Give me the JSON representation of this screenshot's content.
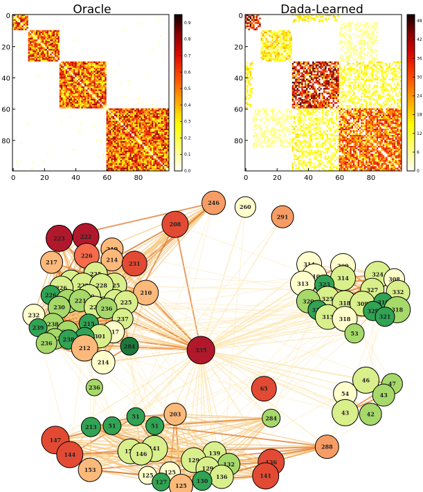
{
  "chart_data": [
    {
      "type": "heatmap",
      "title": "Oracle",
      "xticks": [
        0,
        20,
        40,
        60,
        80
      ],
      "yticks": [
        0,
        20,
        40,
        60,
        80
      ],
      "xlim": [
        0,
        100
      ],
      "ylim": [
        0,
        100
      ],
      "colormap": "hot_r",
      "colorbar": {
        "range": [
          0.0,
          0.95
        ],
        "ticks": [
          "0.0",
          "0.1",
          "0.2",
          "0.3",
          "0.4",
          "0.5",
          "0.6",
          "0.7",
          "0.8",
          "0.9"
        ]
      },
      "blocks": [
        {
          "start": 0,
          "end": 10,
          "level": 0.6
        },
        {
          "start": 10,
          "end": 30,
          "level": 0.6
        },
        {
          "start": 30,
          "end": 60,
          "level": 0.6
        },
        {
          "start": 60,
          "end": 100,
          "level": 0.6
        }
      ],
      "diagonal_value": 0.0
    },
    {
      "type": "heatmap",
      "title": "Dada-Learned",
      "xticks": [
        0,
        20,
        40,
        60,
        80
      ],
      "yticks": [
        0,
        20,
        40,
        60,
        80
      ],
      "xlim": [
        0,
        100
      ],
      "ylim": [
        0,
        100
      ],
      "colormap": "hot_r",
      "colorbar": {
        "range": [
          0,
          50
        ],
        "ticks": [
          "0",
          "6",
          "12",
          "18",
          "24",
          "30",
          "36",
          "42",
          "48"
        ]
      },
      "blocks": [
        {
          "start": 0,
          "end": 10,
          "level": 40
        },
        {
          "start": 10,
          "end": 30,
          "level": 18
        },
        {
          "start": 30,
          "end": 60,
          "level": 38
        },
        {
          "start": 60,
          "end": 100,
          "level": 30
        }
      ],
      "cross_blocks": [
        {
          "rows": [
            0,
            5
          ],
          "cols": [
            30,
            60
          ],
          "level": 14
        },
        {
          "rows": [
            5,
            30
          ],
          "cols": [
            60,
            85
          ],
          "level": 6
        },
        {
          "rows": [
            30,
            60
          ],
          "cols": [
            60,
            100
          ],
          "level": 12
        },
        {
          "rows": [
            60,
            100
          ],
          "cols": [
            30,
            34
          ],
          "level": 14
        }
      ],
      "diagonal_value": 0
    },
    {
      "type": "network",
      "node_colormap": "RdYlGn",
      "nodes": [
        {
          "label": "246",
          "pos": [
            0.505,
            0.048
          ],
          "size": 1.0,
          "color": "#f79c64"
        },
        {
          "label": "260",
          "pos": [
            0.58,
            0.062
          ],
          "size": 0.8,
          "color": "#ffffcc"
        },
        {
          "label": "291",
          "pos": [
            0.668,
            0.094
          ],
          "size": 0.9,
          "color": "#f79c64"
        },
        {
          "label": "208",
          "pos": [
            0.414,
            0.119
          ],
          "size": 1.2,
          "color": "#e34a33"
        },
        {
          "label": "223",
          "pos": [
            0.14,
            0.165
          ],
          "size": 1.2,
          "color": "#b2182b"
        },
        {
          "label": "222",
          "pos": [
            0.203,
            0.159
          ],
          "size": 1.2,
          "color": "#b2182b"
        },
        {
          "label": "226",
          "pos": [
            0.205,
            0.222
          ],
          "size": 1.1,
          "color": "#f56b4c"
        },
        {
          "label": "219",
          "pos": [
            0.265,
            0.2
          ],
          "size": 0.9,
          "color": "#fdb97a"
        },
        {
          "label": "217",
          "pos": [
            0.122,
            0.244
          ],
          "size": 0.9,
          "color": "#fdb97a"
        },
        {
          "label": "214",
          "pos": [
            0.265,
            0.236
          ],
          "size": 0.9,
          "color": "#fdb97a"
        },
        {
          "label": "231",
          "pos": [
            0.318,
            0.248
          ],
          "size": 1.1,
          "color": "#e34a33"
        },
        {
          "label": "225",
          "pos": [
            0.226,
            0.282
          ],
          "size": 1.0,
          "color": "#d9ef8b"
        },
        {
          "label": "230",
          "pos": [
            0.168,
            0.308
          ],
          "size": 1.0,
          "color": "#d9ef8b"
        },
        {
          "label": "229",
          "pos": [
            0.196,
            0.32
          ],
          "size": 1.1,
          "color": "#d9ef8b"
        },
        {
          "label": "225",
          "pos": [
            0.27,
            0.32
          ],
          "size": 1.1,
          "color": "#d9ef8b"
        },
        {
          "label": "226",
          "pos": [
            0.145,
            0.328
          ],
          "size": 1.0,
          "color": "#d9ef8b"
        },
        {
          "label": "228",
          "pos": [
            0.24,
            0.32
          ],
          "size": 1.0,
          "color": "#d9ef8b"
        },
        {
          "label": "210",
          "pos": [
            0.345,
            0.344
          ],
          "size": 1.1,
          "color": "#fdb97a"
        },
        {
          "label": "226",
          "pos": [
            0.12,
            0.352
          ],
          "size": 0.7,
          "color": "#31a354"
        },
        {
          "label": "219",
          "pos": [
            0.21,
            0.356
          ],
          "size": 1.0,
          "color": "#d9ef8b"
        },
        {
          "label": "227",
          "pos": [
            0.16,
            0.372
          ],
          "size": 1.0,
          "color": "#a6d96a"
        },
        {
          "label": "221",
          "pos": [
            0.19,
            0.37
          ],
          "size": 0.9,
          "color": "#a6d96a"
        },
        {
          "label": "223",
          "pos": [
            0.272,
            0.37
          ],
          "size": 0.9,
          "color": "#d9ef8b"
        },
        {
          "label": "225",
          "pos": [
            0.298,
            0.376
          ],
          "size": 1.0,
          "color": "#d9ef8b"
        },
        {
          "label": "230",
          "pos": [
            0.14,
            0.392
          ],
          "size": 0.9,
          "color": "#a6d96a"
        },
        {
          "label": "228",
          "pos": [
            0.225,
            0.392
          ],
          "size": 0.9,
          "color": "#d9ef8b"
        },
        {
          "label": "236",
          "pos": [
            0.252,
            0.396
          ],
          "size": 0.8,
          "color": "#a6d96a"
        },
        {
          "label": "232",
          "pos": [
            0.08,
            0.418
          ],
          "size": 0.9,
          "color": "#ffffcc"
        },
        {
          "label": "237",
          "pos": [
            0.29,
            0.43
          ],
          "size": 0.8,
          "color": "#d9ef8b"
        },
        {
          "label": "238",
          "pos": [
            0.125,
            0.448
          ],
          "size": 0.9,
          "color": "#a6d96a"
        },
        {
          "label": "215",
          "pos": [
            0.21,
            0.446
          ],
          "size": 0.7,
          "color": "#31a354"
        },
        {
          "label": "242",
          "pos": [
            0.16,
            0.473
          ],
          "size": 0.9,
          "color": "#a6d96a"
        },
        {
          "label": "217",
          "pos": [
            0.268,
            0.473
          ],
          "size": 0.9,
          "color": "#ffffcc"
        },
        {
          "label": "239",
          "pos": [
            0.09,
            0.459
          ],
          "size": 0.6,
          "color": "#31a354"
        },
        {
          "label": "301",
          "pos": [
            0.236,
            0.487
          ],
          "size": 1.0,
          "color": "#d9ef8b"
        },
        {
          "label": "275",
          "pos": [
            0.2,
            0.49
          ],
          "size": 0.7,
          "color": "#31a354"
        },
        {
          "label": "242",
          "pos": [
            0.13,
            0.496
          ],
          "size": 0.8,
          "color": "#a6d96a"
        },
        {
          "label": "238",
          "pos": [
            0.162,
            0.498
          ],
          "size": 0.7,
          "color": "#31a354"
        },
        {
          "label": "236",
          "pos": [
            0.11,
            0.51
          ],
          "size": 0.8,
          "color": "#a6d96a"
        },
        {
          "label": "212",
          "pos": [
            0.2,
            0.526
          ],
          "size": 1.2,
          "color": "#fdb97a"
        },
        {
          "label": "284",
          "pos": [
            0.306,
            0.52
          ],
          "size": 0.6,
          "color": "#1a7a3a"
        },
        {
          "label": "335",
          "pos": [
            0.475,
            0.533
          ],
          "size": 1.3,
          "color": "#b2182b"
        },
        {
          "label": "214",
          "pos": [
            0.244,
            0.573
          ],
          "size": 1.0,
          "color": "#ffffcc"
        },
        {
          "label": "314",
          "pos": [
            0.731,
            0.25
          ],
          "size": 1.1,
          "color": "#ffffcc"
        },
        {
          "label": "309",
          "pos": [
            0.811,
            0.256
          ],
          "size": 1.1,
          "color": "#ffffcc"
        },
        {
          "label": "310",
          "pos": [
            0.743,
            0.29
          ],
          "size": 1.1,
          "color": "#ffffcc"
        },
        {
          "label": "314",
          "pos": [
            0.811,
            0.296
          ],
          "size": 1.1,
          "color": "#d9ef8b"
        },
        {
          "label": "324",
          "pos": [
            0.893,
            0.284
          ],
          "size": 1.2,
          "color": "#d9ef8b"
        },
        {
          "label": "308",
          "pos": [
            0.932,
            0.299
          ],
          "size": 0.8,
          "color": "#ffffcc"
        },
        {
          "label": "313",
          "pos": [
            0.716,
            0.314
          ],
          "size": 1.1,
          "color": "#ffffcc"
        },
        {
          "label": "323",
          "pos": [
            0.767,
            0.317
          ],
          "size": 0.7,
          "color": "#31a354"
        },
        {
          "label": "327",
          "pos": [
            0.88,
            0.335
          ],
          "size": 1.0,
          "color": "#d9ef8b"
        },
        {
          "label": "332",
          "pos": [
            0.941,
            0.342
          ],
          "size": 1.0,
          "color": "#d9ef8b"
        },
        {
          "label": "325",
          "pos": [
            0.774,
            0.364
          ],
          "size": 1.1,
          "color": "#d9ef8b"
        },
        {
          "label": "320",
          "pos": [
            0.729,
            0.372
          ],
          "size": 1.0,
          "color": "#a6d96a"
        },
        {
          "label": "318",
          "pos": [
            0.815,
            0.378
          ],
          "size": 1.1,
          "color": "#d9ef8b"
        },
        {
          "label": "309",
          "pos": [
            0.857,
            0.38
          ],
          "size": 1.1,
          "color": "#d9ef8b"
        },
        {
          "label": "319",
          "pos": [
            0.906,
            0.376
          ],
          "size": 0.7,
          "color": "#31a354"
        },
        {
          "label": "318",
          "pos": [
            0.939,
            0.4
          ],
          "size": 1.2,
          "color": "#a6d96a"
        },
        {
          "label": "316",
          "pos": [
            0.751,
            0.401
          ],
          "size": 0.7,
          "color": "#31a354"
        },
        {
          "label": "329",
          "pos": [
            0.882,
            0.404
          ],
          "size": 0.7,
          "color": "#31a354"
        },
        {
          "label": "313",
          "pos": [
            0.775,
            0.424
          ],
          "size": 1.1,
          "color": "#d9ef8b"
        },
        {
          "label": "318",
          "pos": [
            0.815,
            0.43
          ],
          "size": 1.1,
          "color": "#ffffcc"
        },
        {
          "label": "321",
          "pos": [
            0.91,
            0.423
          ],
          "size": 0.7,
          "color": "#31a354"
        },
        {
          "label": "53",
          "pos": [
            0.838,
            0.478
          ],
          "size": 0.7,
          "color": "#a6d96a"
        },
        {
          "label": "46",
          "pos": [
            0.865,
            0.632
          ],
          "size": 1.2,
          "color": "#d9ef8b"
        },
        {
          "label": "47",
          "pos": [
            0.927,
            0.644
          ],
          "size": 0.8,
          "color": "#a6d96a"
        },
        {
          "label": "54",
          "pos": [
            0.816,
            0.676
          ],
          "size": 1.0,
          "color": "#ffffcc"
        },
        {
          "label": "43",
          "pos": [
            0.907,
            0.681
          ],
          "size": 0.9,
          "color": "#a6d96a"
        },
        {
          "label": "43",
          "pos": [
            0.816,
            0.739
          ],
          "size": 1.2,
          "color": "#d9ef8b"
        },
        {
          "label": "42",
          "pos": [
            0.876,
            0.744
          ],
          "size": 0.9,
          "color": "#a6d96a"
        },
        {
          "label": "65",
          "pos": [
            0.624,
            0.66
          ],
          "size": 1.1,
          "color": "#e34a33"
        },
        {
          "label": "284",
          "pos": [
            0.641,
            0.757
          ],
          "size": 0.6,
          "color": "#a6d96a"
        },
        {
          "label": "288",
          "pos": [
            0.773,
            0.851
          ],
          "size": 1.0,
          "color": "#f79c64"
        },
        {
          "label": "236",
          "pos": [
            0.223,
            0.656
          ],
          "size": 0.5,
          "color": "#a6d96a"
        },
        {
          "label": "203",
          "pos": [
            0.414,
            0.744
          ],
          "size": 0.9,
          "color": "#fdb97a"
        },
        {
          "label": "51",
          "pos": [
            0.321,
            0.752
          ],
          "size": 0.6,
          "color": "#31a354"
        },
        {
          "label": "51",
          "pos": [
            0.265,
            0.782
          ],
          "size": 0.6,
          "color": "#31a354"
        },
        {
          "label": "51",
          "pos": [
            0.366,
            0.782
          ],
          "size": 0.6,
          "color": "#31a354"
        },
        {
          "label": "213",
          "pos": [
            0.215,
            0.786
          ],
          "size": 0.7,
          "color": "#31a354"
        },
        {
          "label": "147",
          "pos": [
            0.131,
            0.829
          ],
          "size": 1.3,
          "color": "#e34a33"
        },
        {
          "label": "152",
          "pos": [
            0.308,
            0.866
          ],
          "size": 1.1,
          "color": "#d9ef8b"
        },
        {
          "label": "141",
          "pos": [
            0.365,
            0.857
          ],
          "size": 1.2,
          "color": "#d9ef8b"
        },
        {
          "label": "146",
          "pos": [
            0.334,
            0.875
          ],
          "size": 0.9,
          "color": "#d9ef8b"
        },
        {
          "label": "144",
          "pos": [
            0.165,
            0.877
          ],
          "size": 1.2,
          "color": "#e34a33"
        },
        {
          "label": "139",
          "pos": [
            0.507,
            0.873
          ],
          "size": 1.0,
          "color": "#d9ef8b"
        },
        {
          "label": "129",
          "pos": [
            0.458,
            0.895
          ],
          "size": 1.1,
          "color": "#d9ef8b"
        },
        {
          "label": "132",
          "pos": [
            0.541,
            0.909
          ],
          "size": 0.9,
          "color": "#a6d96a"
        },
        {
          "label": "136",
          "pos": [
            0.641,
            0.902
          ],
          "size": 1.2,
          "color": "#e34a33"
        },
        {
          "label": "129",
          "pos": [
            0.491,
            0.923
          ],
          "size": 1.0,
          "color": "#d9ef8b"
        },
        {
          "label": "153",
          "pos": [
            0.213,
            0.927
          ],
          "size": 1.0,
          "color": "#fdb97a"
        },
        {
          "label": "125",
          "pos": [
            0.402,
            0.935
          ],
          "size": 0.8,
          "color": "#ffffcc"
        },
        {
          "label": "136",
          "pos": [
            0.524,
            0.95
          ],
          "size": 1.0,
          "color": "#d9ef8b"
        },
        {
          "label": "141",
          "pos": [
            0.628,
            0.947
          ],
          "size": 1.2,
          "color": "#e34a33"
        },
        {
          "label": "125",
          "pos": [
            0.349,
            0.945
          ],
          "size": 0.6,
          "color": "#ffffcc"
        },
        {
          "label": "130",
          "pos": [
            0.478,
            0.963
          ],
          "size": 0.7,
          "color": "#31a354"
        },
        {
          "label": "127",
          "pos": [
            0.381,
            0.967
          ],
          "size": 0.6,
          "color": "#31a354"
        },
        {
          "label": "125",
          "pos": [
            0.428,
            0.98
          ],
          "size": 1.0,
          "color": "#fdb97a"
        }
      ]
    }
  ]
}
